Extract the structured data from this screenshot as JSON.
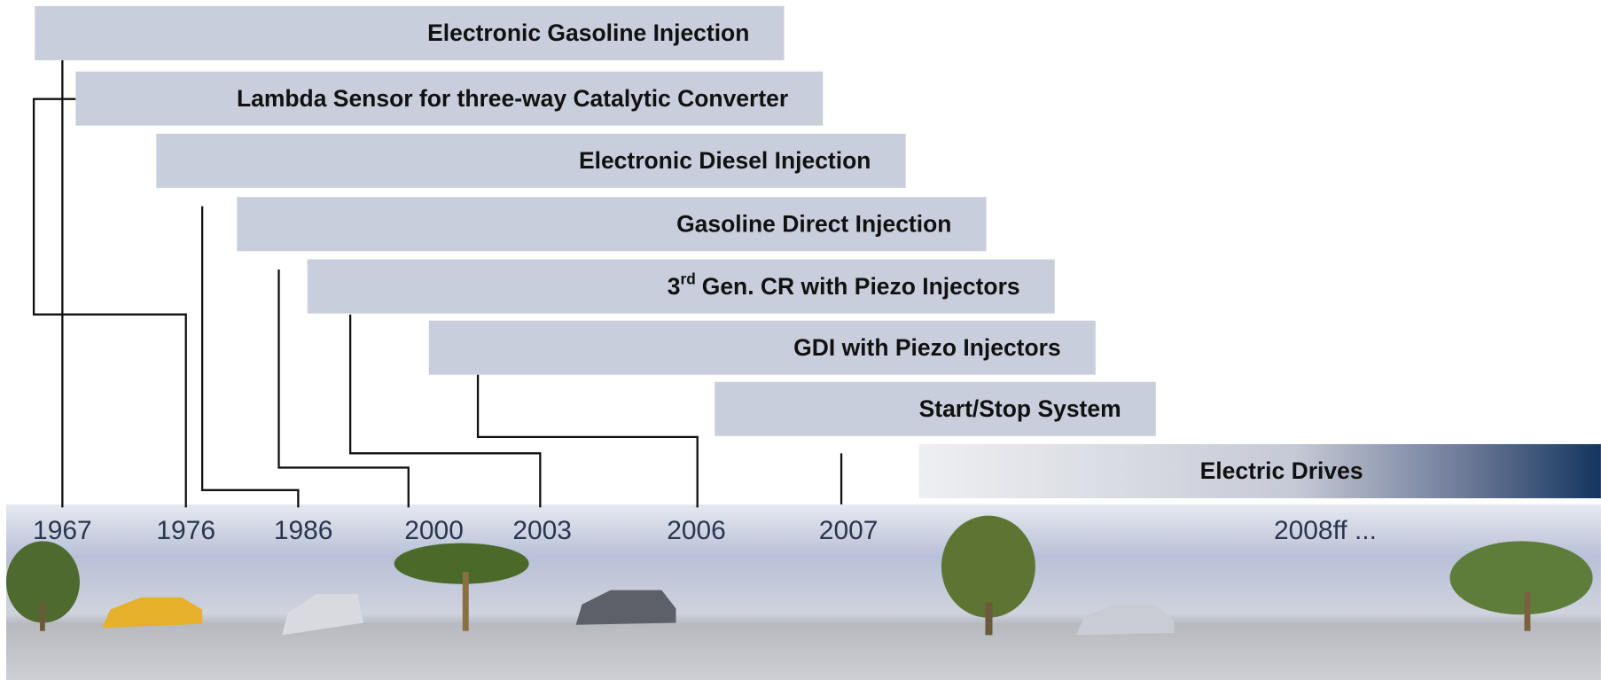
{
  "bars": [
    {
      "label": "Electronic Gasoline Injection"
    },
    {
      "label": "Lambda Sensor for three-way Catalytic Converter"
    },
    {
      "label": "Electronic Diesel Injection"
    },
    {
      "label": "Gasoline  Direct Injection"
    },
    {
      "label": "3",
      "superscript": "rd",
      "label_rest": "Gen. CR with Piezo Injectors"
    },
    {
      "label": "GDI with Piezo Injectors"
    },
    {
      "label": "Start/Stop System"
    },
    {
      "label": "Electric  Drives"
    }
  ],
  "years": [
    "1967",
    "1976",
    "1986",
    "2000",
    "2003",
    "2006",
    "2007",
    "2008ff ..."
  ]
}
